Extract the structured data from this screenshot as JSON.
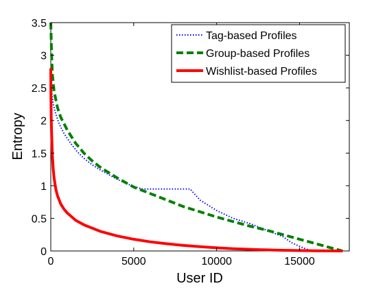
{
  "chart_data": {
    "type": "line",
    "title": "",
    "xlabel": "User ID",
    "ylabel": "Entropy",
    "xlim": [
      0,
      18000
    ],
    "ylim": [
      0,
      3.5
    ],
    "xticks": [
      0,
      5000,
      10000,
      15000
    ],
    "xtick_labels": [
      "0",
      "5000",
      "10000",
      "15000"
    ],
    "yticks": [
      0,
      0.5,
      1,
      1.5,
      2,
      2.5,
      3,
      3.5
    ],
    "ytick_labels": [
      "0",
      "0.5",
      "1",
      "1.5",
      "2",
      "2.5",
      "3",
      "3.5"
    ],
    "grid": false,
    "legend_position": "top-right",
    "series": [
      {
        "name": "Tag-based Profiles",
        "color": "#0000ff",
        "style": "dotted",
        "x": [
          0,
          50,
          150,
          300,
          500,
          800,
          1200,
          1600,
          2000,
          2500,
          3000,
          3500,
          4000,
          4500,
          5000,
          5500,
          6000,
          7000,
          8000,
          8400,
          9000,
          10000,
          11000,
          12000,
          13000,
          14000,
          14500,
          15000,
          15500,
          15900
        ],
        "y": [
          2.75,
          2.45,
          2.25,
          2.1,
          1.95,
          1.8,
          1.65,
          1.52,
          1.42,
          1.32,
          1.24,
          1.17,
          1.1,
          1.04,
          0.99,
          0.95,
          0.95,
          0.95,
          0.95,
          0.95,
          0.78,
          0.62,
          0.5,
          0.42,
          0.32,
          0.22,
          0.13,
          0.07,
          0.02,
          0.0
        ]
      },
      {
        "name": "Group-based Profiles",
        "color": "#008000",
        "style": "dashed",
        "x": [
          0,
          20,
          50,
          100,
          200,
          400,
          600,
          1000,
          1500,
          2000,
          2500,
          3000,
          4000,
          5000,
          6000,
          7000,
          8000,
          9000,
          10000,
          11000,
          12000,
          13000,
          14000,
          15000,
          16000,
          17000,
          17600
        ],
        "y": [
          3.5,
          3.3,
          3.0,
          2.7,
          2.45,
          2.2,
          2.05,
          1.85,
          1.65,
          1.5,
          1.38,
          1.28,
          1.12,
          0.98,
          0.88,
          0.78,
          0.68,
          0.6,
          0.52,
          0.45,
          0.38,
          0.32,
          0.25,
          0.18,
          0.11,
          0.04,
          0.0
        ]
      },
      {
        "name": "Wishlist-based Profiles",
        "color": "#ff0000",
        "style": "solid",
        "x": [
          0,
          10,
          30,
          60,
          100,
          150,
          200,
          300,
          400,
          600,
          800,
          1000,
          1500,
          2000,
          3000,
          4000,
          5000,
          6000,
          7000,
          8000,
          9000,
          10000,
          11000,
          12000,
          13000,
          14000,
          15000,
          16000,
          17000,
          17600
        ],
        "y": [
          2.8,
          2.4,
          2.0,
          1.7,
          1.45,
          1.25,
          1.12,
          0.95,
          0.85,
          0.72,
          0.64,
          0.58,
          0.47,
          0.4,
          0.3,
          0.23,
          0.18,
          0.14,
          0.11,
          0.085,
          0.065,
          0.048,
          0.035,
          0.025,
          0.017,
          0.011,
          0.006,
          0.003,
          0.001,
          0.0
        ]
      }
    ]
  }
}
